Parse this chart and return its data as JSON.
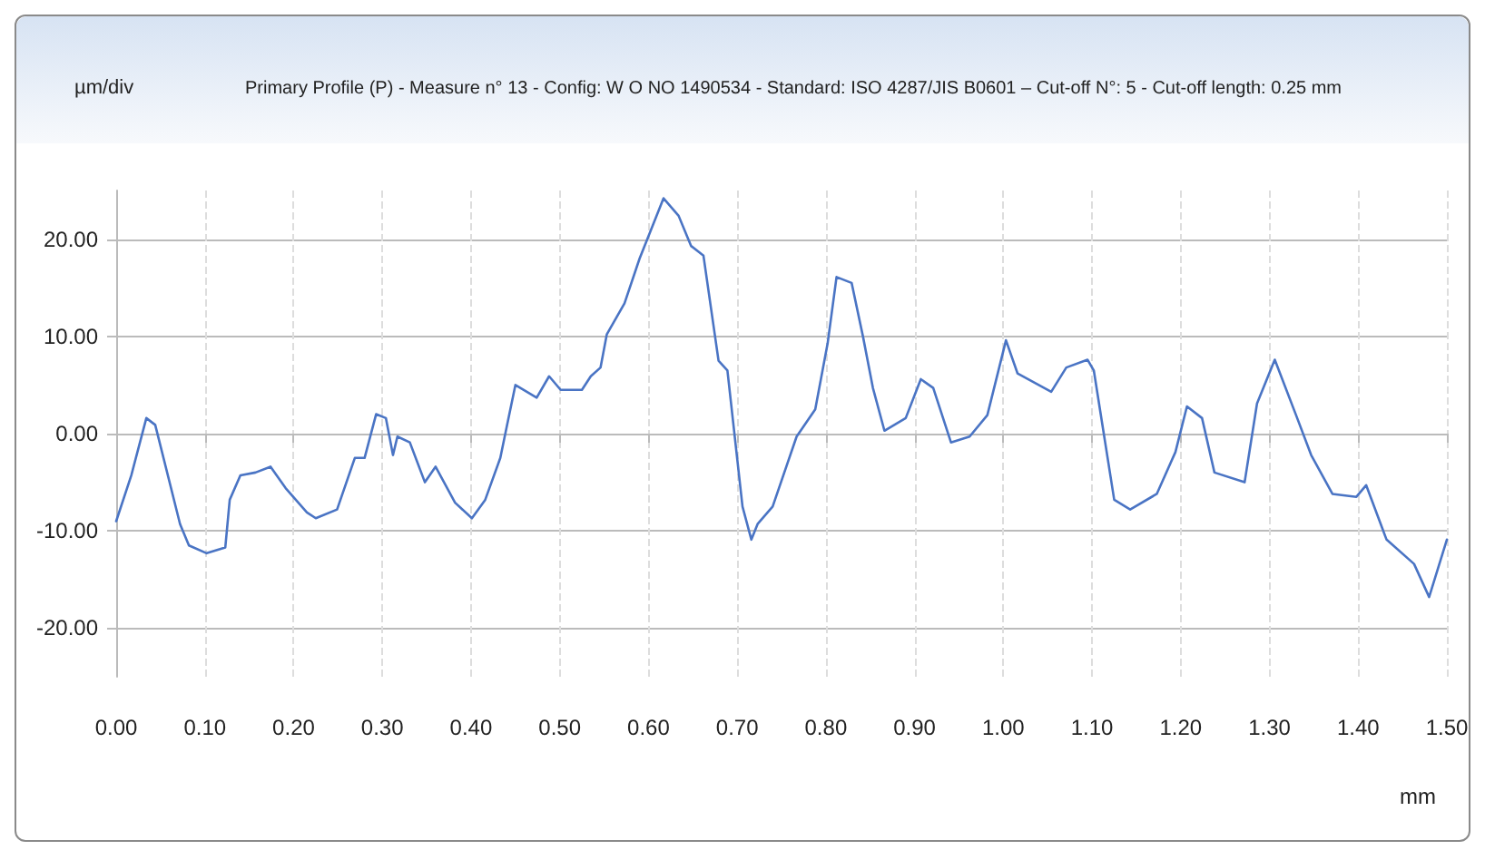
{
  "chart_data": {
    "type": "line",
    "title": "Primary Profile (P) - Measure n° 13 - Config: W O NO 1490534 - Standard: ISO 4287/JIS B0601 – Cut-off N°: 5 - Cut-off length: 0.25 mm",
    "ylabel": "µm/div",
    "xlabel": "mm",
    "series": [
      {
        "color": "#4a74c4",
        "x": [
          0,
          0.017,
          0.034,
          0.044,
          0.072,
          0.082,
          0.102,
          0.123,
          0.128,
          0.14,
          0.157,
          0.174,
          0.191,
          0.215,
          0.225,
          0.249,
          0.269,
          0.28,
          0.293,
          0.304,
          0.312,
          0.317,
          0.331,
          0.348,
          0.36,
          0.382,
          0.401,
          0.416,
          0.433,
          0.44,
          0.45,
          0.474,
          0.488,
          0.501,
          0.525,
          0.535,
          0.546,
          0.553,
          0.573,
          0.59,
          0.617,
          0.634,
          0.648,
          0.662,
          0.679,
          0.689,
          0.706,
          0.716,
          0.723,
          0.74,
          0.767,
          0.788,
          0.802,
          0.812,
          0.829,
          0.842,
          0.853,
          0.866,
          0.89,
          0.907,
          0.921,
          0.941,
          0.962,
          0.982,
          1.003,
          1.016,
          1.054,
          1.071,
          1.095,
          1.102,
          1.125,
          1.143,
          1.173,
          1.194,
          1.207,
          1.224,
          1.238,
          1.272,
          1.286,
          1.306,
          1.33,
          1.347,
          1.371,
          1.398,
          1.409,
          1.432,
          1.463,
          1.48,
          1.5
        ],
        "values": [
          -9,
          -4.3,
          1.6,
          0.9,
          -9.3,
          -11.5,
          -12.3,
          -11.7,
          -6.8,
          -4.3,
          -4,
          -3.4,
          -5.6,
          -8.1,
          -8.7,
          -7.8,
          -2.5,
          -2.5,
          2,
          1.6,
          -2.2,
          -0.3,
          -0.9,
          -5,
          -3.4,
          -7.1,
          -8.7,
          -6.8,
          -2.5,
          0.6,
          5,
          3.7,
          5.9,
          4.5,
          4.5,
          5.9,
          6.8,
          10.2,
          13.4,
          18,
          24.2,
          22.4,
          19.3,
          18.3,
          7.5,
          6.5,
          -7.5,
          -10.9,
          -9.3,
          -7.5,
          -0.3,
          2.5,
          9.3,
          16.1,
          15.5,
          9.9,
          4.7,
          0.3,
          1.6,
          5.6,
          4.7,
          -0.9,
          -0.3,
          1.9,
          9.6,
          6.2,
          4.3,
          6.8,
          7.6,
          6.5,
          -6.8,
          -7.8,
          -6.2,
          -1.9,
          2.8,
          1.6,
          -4,
          -5,
          3.1,
          7.6,
          1.9,
          -2.2,
          -6.2,
          -6.5,
          -5.3,
          -10.9,
          -13.4,
          -16.8,
          -10.9
        ]
      }
    ],
    "xlim": [
      0,
      1.5
    ],
    "xticks": [
      {
        "value": 0,
        "label": "0.00"
      },
      {
        "value": 0.1,
        "label": "0.10"
      },
      {
        "value": 0.2,
        "label": "0.20"
      },
      {
        "value": 0.3,
        "label": "0.30"
      },
      {
        "value": 0.4,
        "label": "0.40"
      },
      {
        "value": 0.5,
        "label": "0.50"
      },
      {
        "value": 0.6,
        "label": "0.60"
      },
      {
        "value": 0.7,
        "label": "0.70"
      },
      {
        "value": 0.8,
        "label": "0.80"
      },
      {
        "value": 0.9,
        "label": "0.90"
      },
      {
        "value": 1,
        "label": "1.00"
      },
      {
        "value": 1.1,
        "label": "1.10"
      },
      {
        "value": 1.2,
        "label": "1.20"
      },
      {
        "value": 1.3,
        "label": "1.30"
      },
      {
        "value": 1.4,
        "label": "1.40"
      },
      {
        "value": 1.5,
        "label": "1.50"
      }
    ],
    "ylim": [
      -25,
      25
    ],
    "yticks": [
      {
        "value": -20,
        "label": "-20.00"
      },
      {
        "value": -10,
        "label": "-10.00"
      },
      {
        "value": 0,
        "label": "0.00"
      },
      {
        "value": 10,
        "label": "10.00"
      },
      {
        "value": 20,
        "label": "20.00"
      }
    ],
    "grid": true,
    "marker": "none",
    "line_style": "solid"
  }
}
